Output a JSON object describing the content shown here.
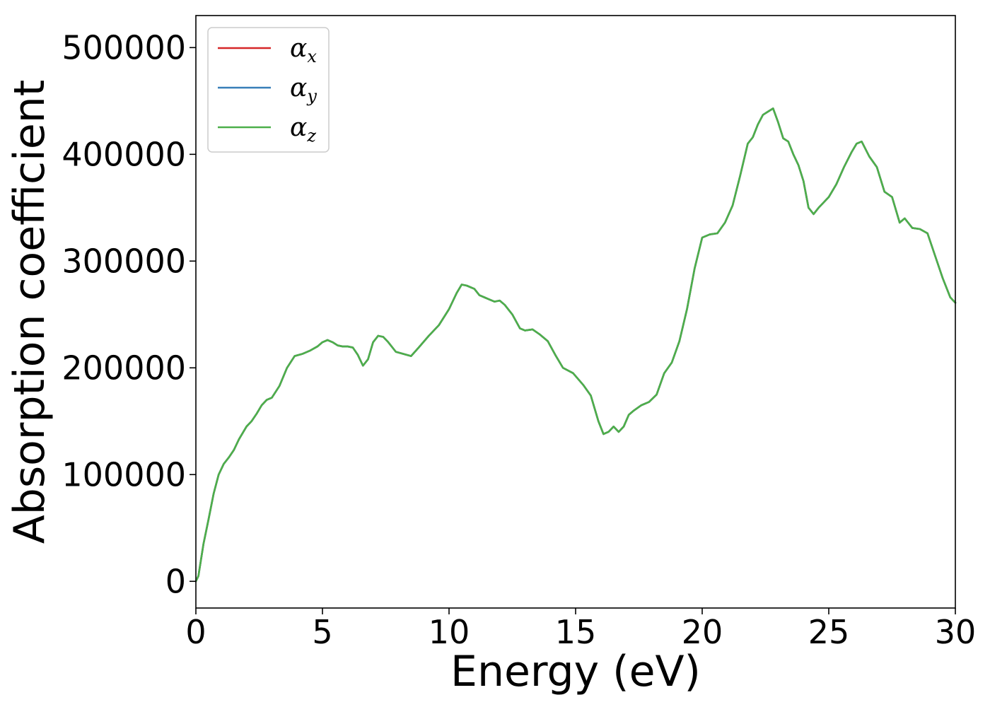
{
  "chart_data": {
    "type": "line",
    "xlabel": "Energy (eV)",
    "ylabel": "Absorption coefficient",
    "xlim": [
      0,
      30
    ],
    "ylim": [
      -25000,
      530000
    ],
    "xticks": [
      0,
      5,
      10,
      15,
      20,
      25,
      30
    ],
    "yticks": [
      0,
      100000,
      200000,
      300000,
      400000,
      500000
    ],
    "xtick_labels": [
      "0",
      "5",
      "10",
      "15",
      "20",
      "25",
      "30"
    ],
    "ytick_labels": [
      "0",
      "100000",
      "200000",
      "300000",
      "400000",
      "500000"
    ],
    "grid": false,
    "legend_position": "top-left",
    "colors": {
      "alpha_x": "#d62728",
      "alpha_y": "#377eb8",
      "alpha_z": "#4daf4a"
    },
    "legend": [
      {
        "key": "alpha_x",
        "symbol": "α",
        "subscript": "x",
        "color": "#d62728"
      },
      {
        "key": "alpha_y",
        "symbol": "α",
        "subscript": "y",
        "color": "#377eb8"
      },
      {
        "key": "alpha_z",
        "symbol": "α",
        "subscript": "z",
        "color": "#4daf4a"
      }
    ],
    "x": [
      0,
      0.1,
      0.3,
      0.5,
      0.7,
      0.9,
      1.1,
      1.3,
      1.5,
      1.7,
      2.0,
      2.2,
      2.4,
      2.6,
      2.8,
      3.0,
      3.3,
      3.6,
      3.9,
      4.2,
      4.5,
      4.8,
      5.0,
      5.2,
      5.4,
      5.6,
      5.8,
      6.0,
      6.2,
      6.4,
      6.6,
      6.8,
      7.0,
      7.2,
      7.4,
      7.6,
      7.9,
      8.2,
      8.5,
      8.8,
      9.2,
      9.6,
      10.0,
      10.3,
      10.5,
      10.7,
      11.0,
      11.2,
      11.4,
      11.6,
      11.8,
      12.0,
      12.2,
      12.5,
      12.8,
      13.0,
      13.3,
      13.6,
      13.9,
      14.2,
      14.5,
      14.9,
      15.3,
      15.6,
      15.9,
      16.1,
      16.3,
      16.5,
      16.7,
      16.9,
      17.1,
      17.3,
      17.6,
      17.9,
      18.2,
      18.5,
      18.8,
      19.1,
      19.4,
      19.7,
      20.0,
      20.3,
      20.6,
      20.9,
      21.2,
      21.5,
      21.8,
      22.0,
      22.2,
      22.4,
      22.6,
      22.8,
      23.0,
      23.2,
      23.4,
      23.6,
      23.8,
      24.0,
      24.2,
      24.4,
      24.6,
      24.8,
      25.0,
      25.3,
      25.6,
      25.9,
      26.1,
      26.3,
      26.6,
      26.9,
      27.2,
      27.5,
      27.8,
      28.0,
      28.3,
      28.6,
      28.9,
      29.2,
      29.5,
      29.8,
      30.0
    ],
    "series": [
      {
        "name": "α_x",
        "color": "#d62728",
        "values": [
          0,
          5000,
          35000,
          58000,
          82000,
          100000,
          110000,
          116000,
          123000,
          133000,
          145000,
          150000,
          157000,
          165000,
          170000,
          172000,
          183000,
          200000,
          211000,
          213000,
          216000,
          220000,
          224000,
          226000,
          224000,
          221000,
          220000,
          220000,
          219000,
          212000,
          202000,
          208000,
          224000,
          230000,
          229000,
          224000,
          215000,
          213000,
          211000,
          219000,
          230000,
          240000,
          255000,
          270000,
          278000,
          277000,
          274000,
          268000,
          266000,
          264000,
          262000,
          263000,
          259000,
          250000,
          237000,
          235000,
          236000,
          231000,
          225000,
          212000,
          200000,
          195000,
          184000,
          174000,
          150000,
          138000,
          140000,
          145000,
          140000,
          145000,
          156000,
          160000,
          165000,
          168000,
          175000,
          195000,
          205000,
          225000,
          255000,
          293000,
          322000,
          325000,
          326000,
          336000,
          352000,
          380000,
          410000,
          416000,
          428000,
          437000,
          440000,
          443000,
          430000,
          415000,
          412000,
          400000,
          390000,
          375000,
          350000,
          344000,
          350000,
          355000,
          360000,
          372000,
          388000,
          402000,
          410000,
          412000,
          398000,
          388000,
          365000,
          360000,
          336000,
          340000,
          331000,
          330000,
          326000,
          305000,
          284000,
          266000,
          261000
        ]
      },
      {
        "name": "α_y",
        "color": "#377eb8",
        "values": [
          0,
          5000,
          35000,
          58000,
          82000,
          100000,
          110000,
          116000,
          123000,
          133000,
          145000,
          150000,
          157000,
          165000,
          170000,
          172000,
          183000,
          200000,
          211000,
          213000,
          216000,
          220000,
          224000,
          226000,
          224000,
          221000,
          220000,
          220000,
          219000,
          212000,
          202000,
          208000,
          224000,
          230000,
          229000,
          224000,
          215000,
          213000,
          211000,
          219000,
          230000,
          240000,
          255000,
          270000,
          278000,
          277000,
          274000,
          268000,
          266000,
          264000,
          262000,
          263000,
          259000,
          250000,
          237000,
          235000,
          236000,
          231000,
          225000,
          212000,
          200000,
          195000,
          184000,
          174000,
          150000,
          138000,
          140000,
          145000,
          140000,
          145000,
          156000,
          160000,
          165000,
          168000,
          175000,
          195000,
          205000,
          225000,
          255000,
          293000,
          322000,
          325000,
          326000,
          336000,
          352000,
          380000,
          410000,
          416000,
          428000,
          437000,
          440000,
          443000,
          430000,
          415000,
          412000,
          400000,
          390000,
          375000,
          350000,
          344000,
          350000,
          355000,
          360000,
          372000,
          388000,
          402000,
          410000,
          412000,
          398000,
          388000,
          365000,
          360000,
          336000,
          340000,
          331000,
          330000,
          326000,
          305000,
          284000,
          266000,
          261000
        ]
      },
      {
        "name": "α_z",
        "color": "#4daf4a",
        "values": [
          0,
          5000,
          35000,
          58000,
          82000,
          100000,
          110000,
          116000,
          123000,
          133000,
          145000,
          150000,
          157000,
          165000,
          170000,
          172000,
          183000,
          200000,
          211000,
          213000,
          216000,
          220000,
          224000,
          226000,
          224000,
          221000,
          220000,
          220000,
          219000,
          212000,
          202000,
          208000,
          224000,
          230000,
          229000,
          224000,
          215000,
          213000,
          211000,
          219000,
          230000,
          240000,
          255000,
          270000,
          278000,
          277000,
          274000,
          268000,
          266000,
          264000,
          262000,
          263000,
          259000,
          250000,
          237000,
          235000,
          236000,
          231000,
          225000,
          212000,
          200000,
          195000,
          184000,
          174000,
          150000,
          138000,
          140000,
          145000,
          140000,
          145000,
          156000,
          160000,
          165000,
          168000,
          175000,
          195000,
          205000,
          225000,
          255000,
          293000,
          322000,
          325000,
          326000,
          336000,
          352000,
          380000,
          410000,
          416000,
          428000,
          437000,
          440000,
          443000,
          430000,
          415000,
          412000,
          400000,
          390000,
          375000,
          350000,
          344000,
          350000,
          355000,
          360000,
          372000,
          388000,
          402000,
          410000,
          412000,
          398000,
          388000,
          365000,
          360000,
          336000,
          340000,
          331000,
          330000,
          326000,
          305000,
          284000,
          266000,
          261000
        ]
      }
    ]
  }
}
